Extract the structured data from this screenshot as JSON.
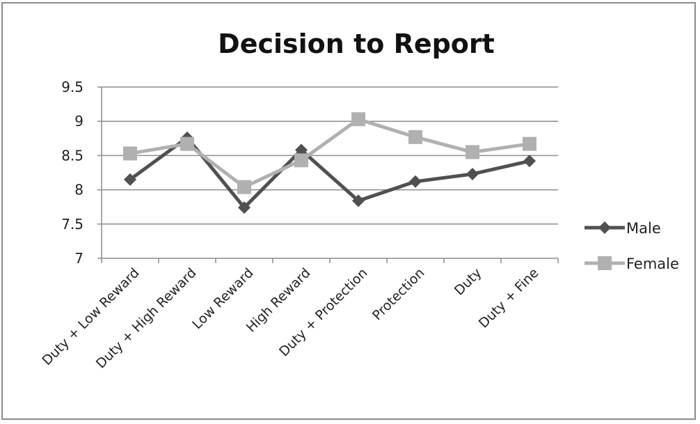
{
  "chart_data": {
    "type": "line",
    "title": "Decision to Report",
    "xlabel": "",
    "ylabel": "",
    "ylim": [
      7,
      9.5
    ],
    "yticks": [
      "9.5",
      "9",
      "8.5",
      "8",
      "7.5",
      "7"
    ],
    "grid": true,
    "legend": "right",
    "categories": [
      "Duty + Low Reward",
      "Duty + High Reward",
      "Low Reward",
      "High Reward",
      "Duty + Protection",
      "Protection",
      "Duty",
      "Duty + Fine"
    ],
    "series": [
      {
        "name": "Male",
        "color": "#505050",
        "marker": "diamond",
        "values": [
          8.15,
          8.76,
          7.74,
          8.58,
          7.84,
          8.12,
          8.23,
          8.42
        ]
      },
      {
        "name": "Female",
        "color": "#b0b0b0",
        "marker": "square",
        "values": [
          8.53,
          8.67,
          8.04,
          8.43,
          9.03,
          8.77,
          8.55,
          8.67
        ]
      }
    ]
  }
}
